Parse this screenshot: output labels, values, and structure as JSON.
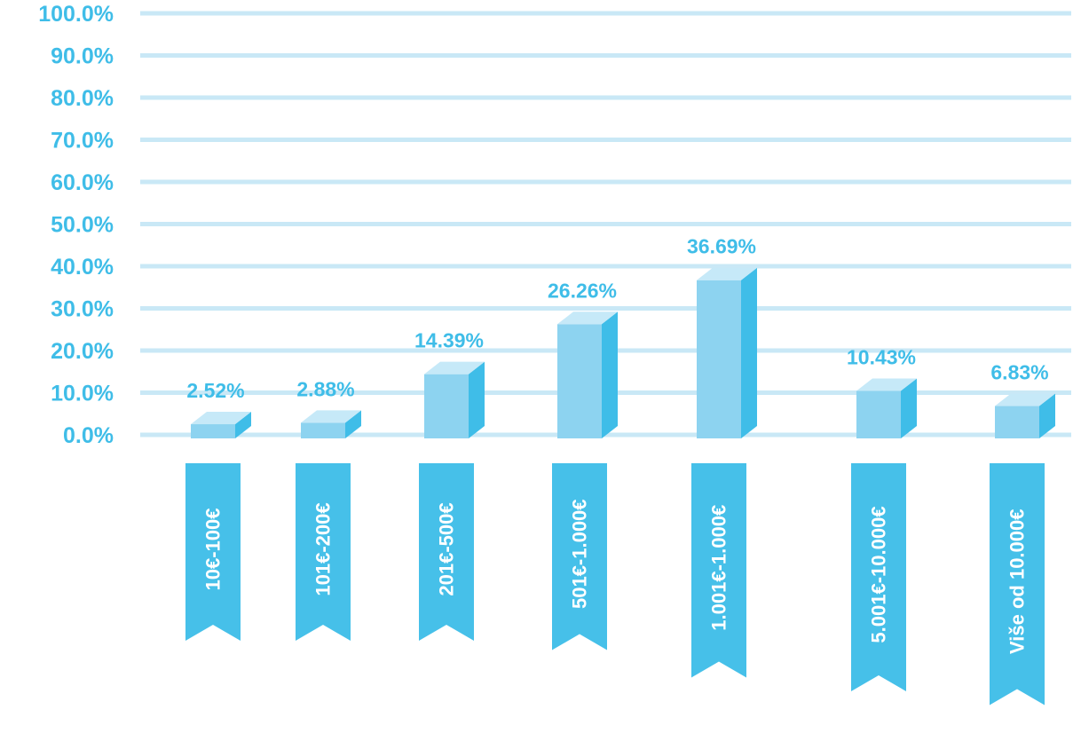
{
  "chart_data": {
    "type": "bar",
    "title": "",
    "xlabel": "",
    "ylabel": "",
    "categories": [
      "10€-100€",
      "101€-200€",
      "201€-500€",
      "501€-1.000€",
      "1.001€-1.000€",
      "5.001€-10.000€",
      "Više od 10.000€"
    ],
    "values": [
      2.52,
      2.88,
      14.39,
      26.26,
      36.69,
      10.43,
      6.83
    ],
    "value_labels": [
      "2.52%",
      "2.88%",
      "14.39%",
      "26.26%",
      "36.69%",
      "10.43%",
      "6.83%"
    ],
    "ylim": [
      0,
      100
    ],
    "yticks": [
      0,
      10,
      20,
      30,
      40,
      50,
      60,
      70,
      80,
      90,
      100
    ],
    "ytick_labels": [
      "0.0%",
      "10.0%",
      "20.0%",
      "30.0%",
      "40.0%",
      "50.0%",
      "60.0%",
      "70.0%",
      "80.0%",
      "90.0%",
      "100.0%"
    ],
    "grid": true,
    "colors": {
      "bar_front": "#8dd3f0",
      "bar_top": "#c6e9f8",
      "bar_side": "#3fbde8",
      "text": "#3fbde8",
      "grid": "#c9e8f6",
      "banner": "#46c0e9",
      "banner_text": "#ffffff"
    }
  }
}
